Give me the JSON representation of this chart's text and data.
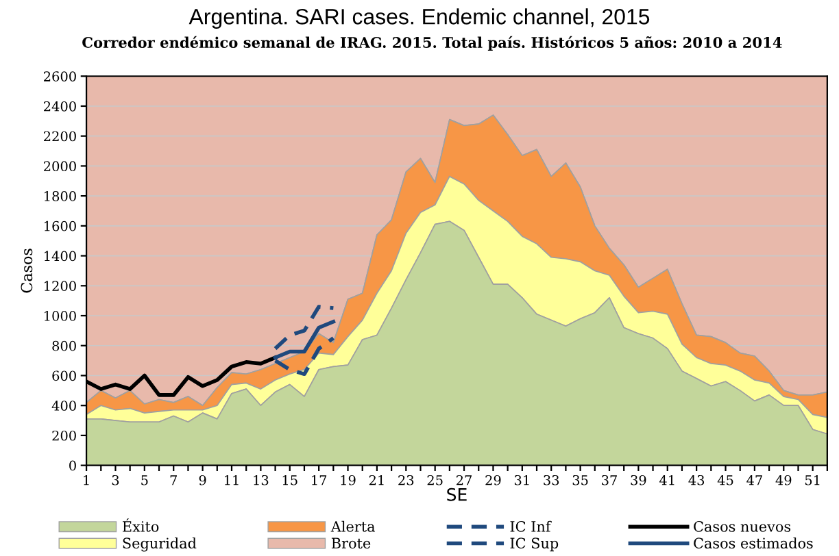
{
  "chart_data": {
    "type": "area",
    "stacked": true,
    "title": "Argentina. SARI cases. Endemic channel, 2015",
    "subtitle": "Corredor endémico semanal de IRAG. 2015. Total país. Históricos 5 años: 2010 a 2014",
    "xlabel": "SE",
    "ylabel": "Casos",
    "x": [
      1,
      2,
      3,
      4,
      5,
      6,
      7,
      8,
      9,
      10,
      11,
      12,
      13,
      14,
      15,
      16,
      17,
      18,
      19,
      20,
      21,
      22,
      23,
      24,
      25,
      26,
      27,
      28,
      29,
      30,
      31,
      32,
      33,
      34,
      35,
      36,
      37,
      38,
      39,
      40,
      41,
      42,
      43,
      44,
      45,
      46,
      47,
      48,
      49,
      50,
      51,
      52
    ],
    "series": [
      {
        "name": "Éxito",
        "color": "#c3d69b",
        "values": [
          310,
          310,
          300,
          290,
          290,
          290,
          330,
          290,
          350,
          310,
          480,
          510,
          400,
          490,
          540,
          460,
          640,
          660,
          670,
          840,
          870,
          1050,
          1240,
          1420,
          1610,
          1630,
          1570,
          1390,
          1210,
          1210,
          1120,
          1010,
          970,
          930,
          980,
          1020,
          1120,
          920,
          880,
          850,
          780,
          630,
          580,
          530,
          560,
          500,
          430,
          470,
          400,
          400,
          240,
          210
        ]
      },
      {
        "name": "Seguridad",
        "color": "#ffff99",
        "values": [
          30,
          90,
          70,
          90,
          60,
          70,
          40,
          80,
          20,
          90,
          60,
          40,
          110,
          80,
          70,
          180,
          110,
          80,
          190,
          130,
          280,
          250,
          310,
          270,
          130,
          300,
          310,
          380,
          490,
          420,
          410,
          470,
          420,
          450,
          380,
          280,
          150,
          210,
          140,
          180,
          230,
          180,
          140,
          150,
          110,
          130,
          140,
          80,
          60,
          40,
          100,
          110
        ]
      },
      {
        "name": "Alerta",
        "color": "#f79646",
        "values": [
          80,
          100,
          80,
          120,
          60,
          80,
          50,
          90,
          30,
          120,
          80,
          60,
          130,
          110,
          110,
          120,
          130,
          80,
          250,
          180,
          390,
          340,
          410,
          360,
          150,
          380,
          390,
          510,
          640,
          580,
          540,
          630,
          540,
          640,
          500,
          300,
          180,
          210,
          170,
          220,
          300,
          270,
          150,
          180,
          150,
          120,
          160,
          80,
          40,
          30,
          130,
          170
        ]
      },
      {
        "name": "Brote",
        "color": "#e8b9ab",
        "values": [
          2180,
          2100,
          2150,
          2100,
          2190,
          2160,
          2180,
          2140,
          2200,
          2080,
          1980,
          1990,
          1960,
          1920,
          1880,
          1840,
          1720,
          1780,
          1490,
          1450,
          1060,
          960,
          640,
          550,
          710,
          290,
          330,
          320,
          260,
          390,
          530,
          490,
          670,
          580,
          740,
          1000,
          1150,
          1260,
          1410,
          1350,
          1290,
          1520,
          1730,
          1740,
          1780,
          1850,
          1870,
          1970,
          2100,
          2130,
          2130,
          2110
        ]
      },
      {
        "name": "IC Inf",
        "type": "line",
        "line_style": "dashed",
        "color": "#1f497d",
        "x": [
          14,
          15,
          16,
          17,
          18
        ],
        "values": [
          700,
          640,
          610,
          780,
          850
        ]
      },
      {
        "name": "IC Sup",
        "type": "line",
        "line_style": "dashed",
        "color": "#1f497d",
        "x": [
          14,
          15,
          16,
          17,
          18
        ],
        "values": [
          780,
          870,
          900,
          1060,
          1050
        ]
      },
      {
        "name": "Casos nuevos",
        "type": "line",
        "line_style": "solid",
        "color": "#000000",
        "x": [
          1,
          2,
          3,
          4,
          5,
          6,
          7,
          8,
          9,
          10,
          11,
          12,
          13,
          14
        ],
        "values": [
          560,
          510,
          540,
          510,
          600,
          470,
          470,
          590,
          530,
          570,
          660,
          690,
          680,
          720
        ]
      },
      {
        "name": "Casos estimados",
        "type": "line",
        "line_style": "solid",
        "color": "#1f497d",
        "x": [
          14,
          15,
          16,
          17,
          18
        ],
        "values": [
          720,
          760,
          760,
          920,
          960
        ]
      }
    ],
    "xlim": [
      1,
      52
    ],
    "ylim": [
      0,
      2600
    ],
    "xticks": [
      1,
      {
        "value": 2,
        "label": null
      },
      3,
      {
        "value": 4,
        "label": null
      },
      5,
      {
        "value": 6,
        "label": null
      },
      7,
      {
        "value": 8,
        "label": null
      },
      9,
      {
        "value": 10,
        "label": null
      },
      11,
      {
        "value": 12,
        "label": null
      },
      13,
      {
        "value": 14,
        "label": null
      },
      15,
      {
        "value": 16,
        "label": null
      },
      17,
      {
        "value": 18,
        "label": null
      },
      19,
      {
        "value": 20,
        "label": null
      },
      21,
      {
        "value": 22,
        "label": null
      },
      23,
      {
        "value": 24,
        "label": null
      },
      25,
      {
        "value": 26,
        "label": null
      },
      27,
      {
        "value": 28,
        "label": null
      },
      29,
      {
        "value": 30,
        "label": null
      },
      31,
      {
        "value": 32,
        "label": null
      },
      33,
      {
        "value": 34,
        "label": null
      },
      35,
      {
        "value": 36,
        "label": null
      },
      37,
      {
        "value": 38,
        "label": null
      },
      39,
      {
        "value": 40,
        "label": null
      },
      41,
      {
        "value": 42,
        "label": null
      },
      43,
      {
        "value": 44,
        "label": null
      },
      45,
      {
        "value": 46,
        "label": null
      },
      47,
      {
        "value": 48,
        "label": null
      },
      49,
      {
        "value": 50,
        "label": null
      },
      51,
      {
        "value": 52,
        "label": null
      }
    ],
    "yticks": [
      0,
      200,
      400,
      600,
      800,
      1000,
      1200,
      1400,
      1600,
      1800,
      2000,
      2200,
      2400,
      2600
    ],
    "grid": "y",
    "legend": "bottom",
    "marker": "none"
  }
}
